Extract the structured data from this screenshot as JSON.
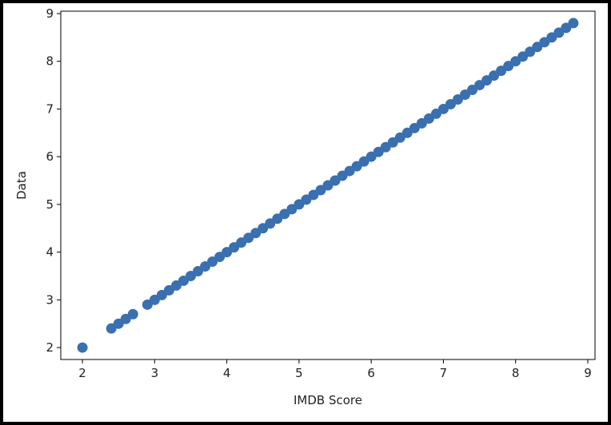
{
  "chart_data": {
    "type": "scatter",
    "title": "",
    "xlabel": "IMDB Score",
    "ylabel": "Data",
    "xlim": [
      1.7,
      9.1
    ],
    "ylim": [
      1.75,
      9.05
    ],
    "xticks": [
      "2",
      "3",
      "4",
      "5",
      "6",
      "7",
      "8",
      "9"
    ],
    "yticks": [
      "2",
      "3",
      "4",
      "5",
      "6",
      "7",
      "8",
      "9"
    ],
    "grid": false,
    "marker_color": "#3a6fb0",
    "series": [
      {
        "x": [
          2.0,
          2.4,
          2.5,
          2.6,
          2.7,
          2.9,
          3.0,
          3.1,
          3.2,
          3.3,
          3.4,
          3.5,
          3.6,
          3.7,
          3.8,
          3.9,
          4.0,
          4.1,
          4.2,
          4.3,
          4.4,
          4.5,
          4.6,
          4.7,
          4.8,
          4.9,
          5.0,
          5.1,
          5.2,
          5.3,
          5.4,
          5.5,
          5.6,
          5.7,
          5.8,
          5.9,
          6.0,
          6.1,
          6.2,
          6.3,
          6.4,
          6.5,
          6.6,
          6.7,
          6.8,
          6.9,
          7.0,
          7.1,
          7.2,
          7.3,
          7.4,
          7.5,
          7.6,
          7.7,
          7.8,
          7.9,
          8.0,
          8.1,
          8.2,
          8.3,
          8.4,
          8.5,
          8.6,
          8.7,
          8.8
        ],
        "y": [
          2.0,
          2.4,
          2.5,
          2.6,
          2.7,
          2.9,
          3.0,
          3.1,
          3.2,
          3.3,
          3.4,
          3.5,
          3.6,
          3.7,
          3.8,
          3.9,
          4.0,
          4.1,
          4.2,
          4.3,
          4.4,
          4.5,
          4.6,
          4.7,
          4.8,
          4.9,
          5.0,
          5.1,
          5.2,
          5.3,
          5.4,
          5.5,
          5.6,
          5.7,
          5.8,
          5.9,
          6.0,
          6.1,
          6.2,
          6.3,
          6.4,
          6.5,
          6.6,
          6.7,
          6.8,
          6.9,
          7.0,
          7.1,
          7.2,
          7.3,
          7.4,
          7.5,
          7.6,
          7.7,
          7.8,
          7.9,
          8.0,
          8.1,
          8.2,
          8.3,
          8.4,
          8.5,
          8.6,
          8.7,
          8.8
        ]
      }
    ]
  }
}
